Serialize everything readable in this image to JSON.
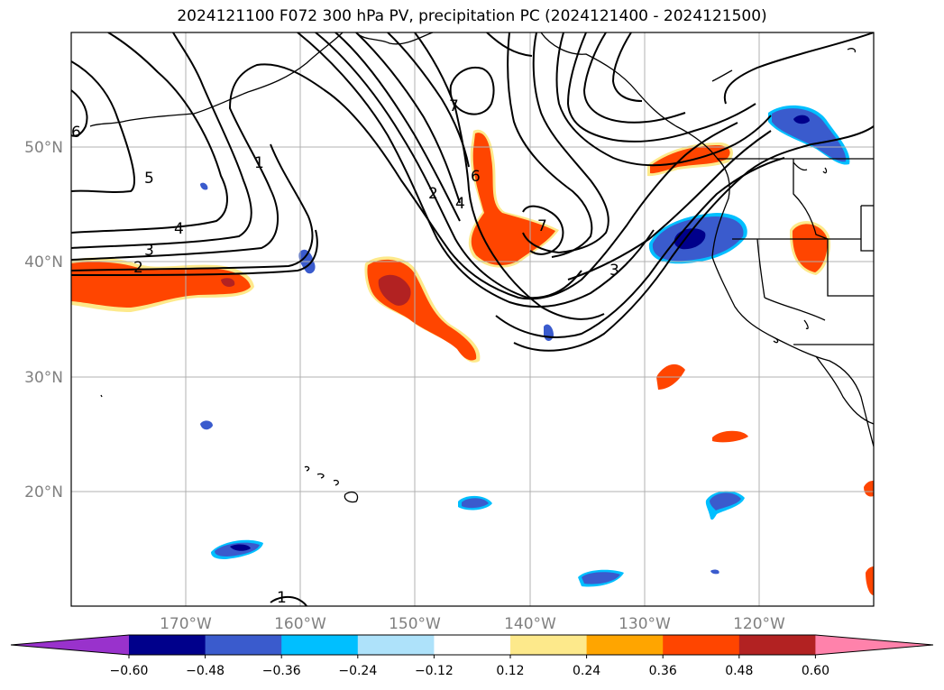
{
  "title": "2024121100 F072 300 hPa PV, precipitation PC (2024121400 - 2024121500)",
  "map": {
    "projection": "PlateCarree",
    "extent": {
      "lon_min": -180,
      "lon_max": -110,
      "lat_min": 10,
      "lat_max": 60
    },
    "gridlines": true,
    "lat_ticks": [
      {
        "value": 50,
        "label": "50°N"
      },
      {
        "value": 40,
        "label": "40°N"
      },
      {
        "value": 30,
        "label": "30°N"
      },
      {
        "value": 20,
        "label": "20°N"
      }
    ],
    "lon_ticks": [
      {
        "value": -170,
        "label": "170°W"
      },
      {
        "value": -160,
        "label": "160°W"
      },
      {
        "value": -150,
        "label": "150°W"
      },
      {
        "value": -140,
        "label": "140°W"
      },
      {
        "value": -130,
        "label": "130°W"
      },
      {
        "value": -120,
        "label": "120°W"
      }
    ]
  },
  "pv_contour_labels": [
    "1",
    "2",
    "3",
    "4",
    "5",
    "6",
    "7"
  ],
  "colorbar": {
    "orientation": "horizontal",
    "extend": "both",
    "levels": [
      "-0.60",
      "-0.48",
      "-0.36",
      "-0.24",
      "-0.12",
      "0.12",
      "0.24",
      "0.36",
      "0.48",
      "0.60"
    ],
    "colors": [
      "#9932cc",
      "#00008b",
      "#3a5bcd",
      "#00bfff",
      "#aee2fa",
      "#ffffff",
      "#fde98b",
      "#ffa500",
      "#ff4500",
      "#b22222",
      "#ff82ab"
    ]
  },
  "icons": [
    "map-coastline",
    "pv-contours",
    "precipitation-shading"
  ]
}
